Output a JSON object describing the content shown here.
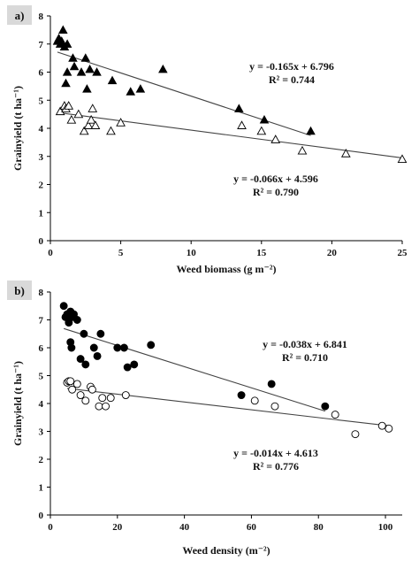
{
  "chart_data": [
    {
      "type": "scatter",
      "panel_label": "a)",
      "xlabel": "Weed biomass (g m⁻²)",
      "ylabel": "Grainyield (t ha⁻¹)",
      "xlim": [
        0,
        25
      ],
      "ylim": [
        0,
        8
      ],
      "xticks": [
        "0",
        "5",
        "10",
        "15",
        "20",
        "25"
      ],
      "yticks": [
        "0",
        "1",
        "2",
        "3",
        "4",
        "5",
        "6",
        "7",
        "8"
      ],
      "grid": false,
      "series": [
        {
          "marker": "triangle-filled",
          "points": [
            [
              0.5,
              7.1
            ],
            [
              0.6,
              7.2
            ],
            [
              0.7,
              7.0
            ],
            [
              0.8,
              7.1
            ],
            [
              0.9,
              7.5
            ],
            [
              1.0,
              6.9
            ],
            [
              1.2,
              7.0
            ],
            [
              1.1,
              5.6
            ],
            [
              1.2,
              6.0
            ],
            [
              1.6,
              6.5
            ],
            [
              1.7,
              6.2
            ],
            [
              2.2,
              6.0
            ],
            [
              2.5,
              6.5
            ],
            [
              2.6,
              5.4
            ],
            [
              2.8,
              6.1
            ],
            [
              3.3,
              6.0
            ],
            [
              4.4,
              5.7
            ],
            [
              5.7,
              5.3
            ],
            [
              6.4,
              5.4
            ],
            [
              8.0,
              6.1
            ],
            [
              13.4,
              4.7
            ],
            [
              15.2,
              4.3
            ],
            [
              18.5,
              3.9
            ]
          ],
          "fit": {
            "slope": -0.165,
            "intercept": 6.796,
            "x_range": [
              0.5,
              18.5
            ]
          },
          "equation": "y = -0.165x + 6.796",
          "r2": "R² = 0.744"
        },
        {
          "marker": "triangle-open",
          "points": [
            [
              0.7,
              4.6
            ],
            [
              1.0,
              4.8
            ],
            [
              1.1,
              4.7
            ],
            [
              1.3,
              4.8
            ],
            [
              1.5,
              4.3
            ],
            [
              2.0,
              4.5
            ],
            [
              2.4,
              3.9
            ],
            [
              2.7,
              4.1
            ],
            [
              2.9,
              4.3
            ],
            [
              3.0,
              4.7
            ],
            [
              3.2,
              4.1
            ],
            [
              4.3,
              3.9
            ],
            [
              5.0,
              4.2
            ],
            [
              13.6,
              4.1
            ],
            [
              15.0,
              3.9
            ],
            [
              16.0,
              3.6
            ],
            [
              17.9,
              3.2
            ],
            [
              21.0,
              3.1
            ],
            [
              25.0,
              2.9
            ]
          ],
          "fit": {
            "slope": -0.066,
            "intercept": 4.596,
            "x_range": [
              0.7,
              25
            ]
          },
          "equation": "y = -0.066x + 4.596",
          "r2": "R² = 0.790"
        }
      ]
    },
    {
      "type": "scatter",
      "panel_label": "b)",
      "xlabel": "Weed density (m⁻²)",
      "ylabel": "Grainyield (t ha⁻¹)",
      "xlim": [
        0,
        105
      ],
      "ylim": [
        0,
        8
      ],
      "xticks": [
        "0",
        "20",
        "40",
        "60",
        "80",
        "100"
      ],
      "yticks": [
        "0",
        "1",
        "2",
        "3",
        "4",
        "5",
        "6",
        "7",
        "8"
      ],
      "grid": false,
      "series": [
        {
          "marker": "circle-filled",
          "points": [
            [
              4,
              7.5
            ],
            [
              4.5,
              7.1
            ],
            [
              5,
              7.2
            ],
            [
              5.5,
              7.0
            ],
            [
              6,
              7.3
            ],
            [
              6.5,
              7.1
            ],
            [
              7,
              7.2
            ],
            [
              8,
              7.0
            ],
            [
              5.5,
              6.9
            ],
            [
              6,
              6.2
            ],
            [
              6.3,
              6.0
            ],
            [
              10,
              6.5
            ],
            [
              13,
              6.0
            ],
            [
              15,
              6.5
            ],
            [
              20,
              6.0
            ],
            [
              22,
              6.0
            ],
            [
              30,
              6.1
            ],
            [
              9,
              5.6
            ],
            [
              10.5,
              5.4
            ],
            [
              14,
              5.7
            ],
            [
              23,
              5.3
            ],
            [
              25,
              5.4
            ],
            [
              57,
              4.3
            ],
            [
              66,
              4.7
            ],
            [
              82,
              3.9
            ]
          ],
          "fit": {
            "slope": -0.038,
            "intercept": 6.841,
            "x_range": [
              4,
              82
            ]
          },
          "equation": "y = -0.038x + 6.841",
          "r2": "R² = 0.710"
        },
        {
          "marker": "circle-open",
          "points": [
            [
              5,
              4.75
            ],
            [
              5.5,
              4.8
            ],
            [
              6,
              4.8
            ],
            [
              6.5,
              4.5
            ],
            [
              8,
              4.7
            ],
            [
              9,
              4.3
            ],
            [
              10.5,
              4.1
            ],
            [
              12,
              4.6
            ],
            [
              12.5,
              4.5
            ],
            [
              14.5,
              3.9
            ],
            [
              15.5,
              4.2
            ],
            [
              16.5,
              3.9
            ],
            [
              18,
              4.2
            ],
            [
              22.5,
              4.3
            ],
            [
              61,
              4.1
            ],
            [
              67,
              3.9
            ],
            [
              85,
              3.6
            ],
            [
              91,
              2.9
            ],
            [
              99,
              3.2
            ],
            [
              101,
              3.1
            ]
          ],
          "fit": {
            "slope": -0.014,
            "intercept": 4.613,
            "x_range": [
              5,
              101
            ]
          },
          "equation": "y = -0.014x + 4.613",
          "r2": "R² = 0.776"
        }
      ]
    }
  ]
}
